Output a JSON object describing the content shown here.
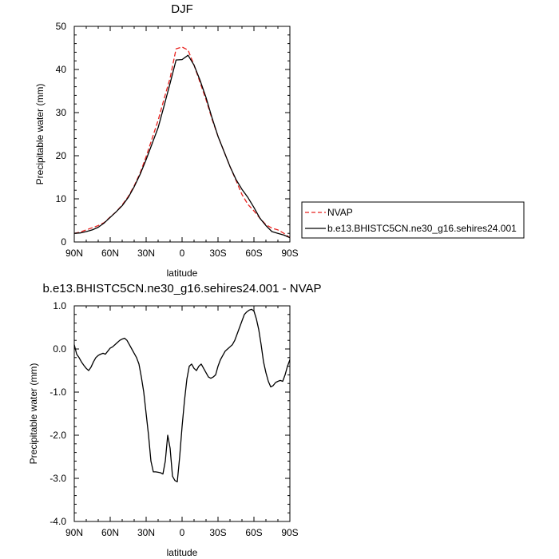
{
  "chart_data": [
    {
      "type": "line",
      "title": "DJF",
      "xlabel": "latitude",
      "ylabel": "Precipitable water (mm)",
      "xlim": [
        -90,
        90
      ],
      "ylim": [
        0,
        50
      ],
      "x_ticks": [
        -90,
        -60,
        -30,
        0,
        30,
        60,
        90
      ],
      "x_tick_labels": [
        "90N",
        "60N",
        "30N",
        "0",
        "30S",
        "60S",
        "90S"
      ],
      "y_ticks": [
        0,
        10,
        20,
        30,
        40,
        50
      ],
      "y_tick_labels": [
        "0",
        "10",
        "20",
        "30",
        "40",
        "50"
      ],
      "legend_position": "right",
      "series": [
        {
          "name": "NVAP",
          "color": "#e8221f",
          "dash": "dashed",
          "x": [
            -90,
            -85,
            -80,
            -75,
            -70,
            -65,
            -60,
            -55,
            -50,
            -45,
            -40,
            -35,
            -30,
            -25,
            -20,
            -15,
            -10,
            -5,
            0,
            5,
            10,
            15,
            20,
            25,
            30,
            35,
            40,
            45,
            50,
            55,
            60,
            65,
            70,
            75,
            80,
            85,
            90
          ],
          "values": [
            2.0,
            2.3,
            2.8,
            3.3,
            3.8,
            4.5,
            5.8,
            7.0,
            8.6,
            10.5,
            13.0,
            16.0,
            19.8,
            24.0,
            28.2,
            33.2,
            38.0,
            44.8,
            45.2,
            44.5,
            41.0,
            37.0,
            33.0,
            28.5,
            24.5,
            21.0,
            17.5,
            14.3,
            11.0,
            8.7,
            7.2,
            5.5,
            4.0,
            3.2,
            2.8,
            2.0,
            1.0
          ]
        },
        {
          "name": "b.e13.BHISTC5CN.ne30_g16.sehires24.001",
          "color": "#000000",
          "dash": "solid",
          "x": [
            -90,
            -85,
            -80,
            -75,
            -70,
            -65,
            -60,
            -55,
            -50,
            -45,
            -40,
            -35,
            -30,
            -25,
            -20,
            -15,
            -10,
            -5,
            0,
            5,
            10,
            15,
            20,
            25,
            30,
            35,
            40,
            45,
            50,
            55,
            60,
            65,
            70,
            75,
            80,
            85,
            90
          ],
          "values": [
            2.0,
            2.1,
            2.4,
            2.8,
            3.4,
            4.4,
            5.7,
            7.0,
            8.4,
            10.3,
            12.8,
            15.7,
            19.1,
            22.8,
            26.5,
            31.6,
            36.8,
            42.2,
            42.3,
            43.3,
            41.0,
            37.5,
            33.5,
            28.8,
            24.5,
            21.0,
            17.5,
            14.5,
            12.2,
            10.3,
            8.0,
            5.5,
            3.8,
            2.4,
            2.0,
            1.6,
            1.0
          ]
        }
      ]
    },
    {
      "type": "line",
      "title": "b.e13.BHISTC5CN.ne30_g16.sehires24.001 - NVAP",
      "xlabel": "latitude",
      "ylabel": "Precipitable water (mm)",
      "xlim": [
        -90,
        90
      ],
      "ylim": [
        -4,
        1
      ],
      "x_ticks": [
        -90,
        -60,
        -30,
        0,
        30,
        60,
        90
      ],
      "x_tick_labels": [
        "90N",
        "60N",
        "30N",
        "0",
        "30S",
        "60S",
        "90S"
      ],
      "y_ticks": [
        -4,
        -3,
        -2,
        -1,
        0,
        1
      ],
      "y_tick_labels": [
        "-4.0",
        "-3.0",
        "-2.0",
        "-1.0",
        "0.0",
        "1.0"
      ],
      "series": [
        {
          "color": "#000000",
          "dash": "solid",
          "x": [
            -90,
            -88,
            -86,
            -84,
            -82,
            -80,
            -78,
            -76,
            -74,
            -72,
            -70,
            -68,
            -66,
            -64,
            -62,
            -60,
            -58,
            -56,
            -54,
            -52,
            -50,
            -48,
            -46,
            -44,
            -42,
            -40,
            -38,
            -36,
            -34,
            -32,
            -30,
            -28,
            -26,
            -24,
            -22,
            -20,
            -18,
            -16,
            -14,
            -12,
            -10,
            -8,
            -6,
            -4,
            -2,
            0,
            2,
            4,
            6,
            8,
            10,
            12,
            14,
            16,
            18,
            20,
            22,
            24,
            26,
            28,
            30,
            32,
            34,
            36,
            38,
            40,
            42,
            44,
            46,
            48,
            50,
            52,
            54,
            56,
            58,
            60,
            62,
            64,
            66,
            68,
            70,
            72,
            74,
            76,
            78,
            80,
            82,
            84,
            86,
            88,
            90
          ],
          "values": [
            0.1,
            -0.12,
            -0.2,
            -0.3,
            -0.38,
            -0.45,
            -0.5,
            -0.42,
            -0.3,
            -0.2,
            -0.15,
            -0.12,
            -0.1,
            -0.12,
            -0.05,
            0.02,
            0.05,
            0.1,
            0.15,
            0.2,
            0.23,
            0.25,
            0.2,
            0.1,
            0.0,
            -0.1,
            -0.2,
            -0.35,
            -0.65,
            -1.0,
            -1.5,
            -2.0,
            -2.6,
            -2.85,
            -2.85,
            -2.86,
            -2.87,
            -2.9,
            -2.6,
            -2.0,
            -2.3,
            -2.95,
            -3.05,
            -3.08,
            -2.5,
            -1.8,
            -1.2,
            -0.7,
            -0.4,
            -0.35,
            -0.45,
            -0.5,
            -0.4,
            -0.35,
            -0.45,
            -0.55,
            -0.65,
            -0.68,
            -0.65,
            -0.6,
            -0.4,
            -0.25,
            -0.15,
            -0.05,
            0.0,
            0.05,
            0.1,
            0.2,
            0.35,
            0.5,
            0.65,
            0.8,
            0.86,
            0.9,
            0.92,
            0.88,
            0.7,
            0.45,
            0.1,
            -0.3,
            -0.55,
            -0.75,
            -0.88,
            -0.85,
            -0.78,
            -0.75,
            -0.73,
            -0.75,
            -0.6,
            -0.4,
            -0.25
          ]
        }
      ]
    }
  ]
}
